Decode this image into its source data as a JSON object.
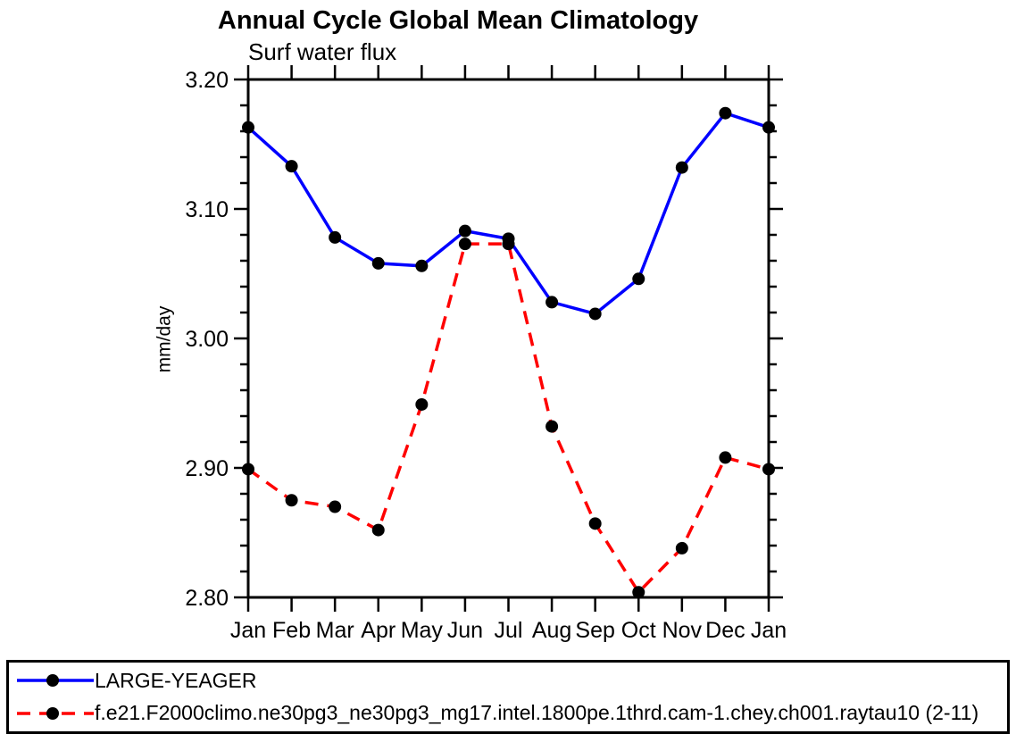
{
  "title": "Annual Cycle Global Mean Climatology",
  "subtitle": "Surf water flux",
  "chart_data": {
    "type": "line",
    "x": [
      "Jan",
      "Feb",
      "Mar",
      "Apr",
      "May",
      "Jun",
      "Jul",
      "Aug",
      "Sep",
      "Oct",
      "Nov",
      "Dec",
      "Jan"
    ],
    "xlabel": "",
    "ylabel": "mm/day",
    "ylim": [
      2.8,
      3.2
    ],
    "ytick_major_step": 0.1,
    "ytick_minor_step": 0.02,
    "ytick_labels": [
      "2.80",
      "2.90",
      "3.00",
      "3.10",
      "3.20"
    ],
    "grid": "off",
    "legend_position": "bottom",
    "marker": "filled-circle",
    "marker_color": "#000000",
    "frame_color": "#000000",
    "series": [
      {
        "name": "LARGE-YEAGER",
        "color": "#0000ff",
        "line_style": "solid",
        "values": [
          3.163,
          3.133,
          3.078,
          3.058,
          3.056,
          3.083,
          3.077,
          3.028,
          3.019,
          3.046,
          3.132,
          3.174,
          3.163
        ]
      },
      {
        "name": "f.e21.F2000climo.ne30pg3_ne30pg3_mg17.intel.1800pe.1thrd.cam-1.chey.ch001.raytau10 (2-11)",
        "color": "#ff0000",
        "line_style": "dashed",
        "values": [
          2.899,
          2.875,
          2.87,
          2.852,
          2.949,
          3.073,
          3.073,
          2.932,
          2.857,
          2.804,
          2.838,
          2.908,
          2.899
        ]
      }
    ]
  }
}
